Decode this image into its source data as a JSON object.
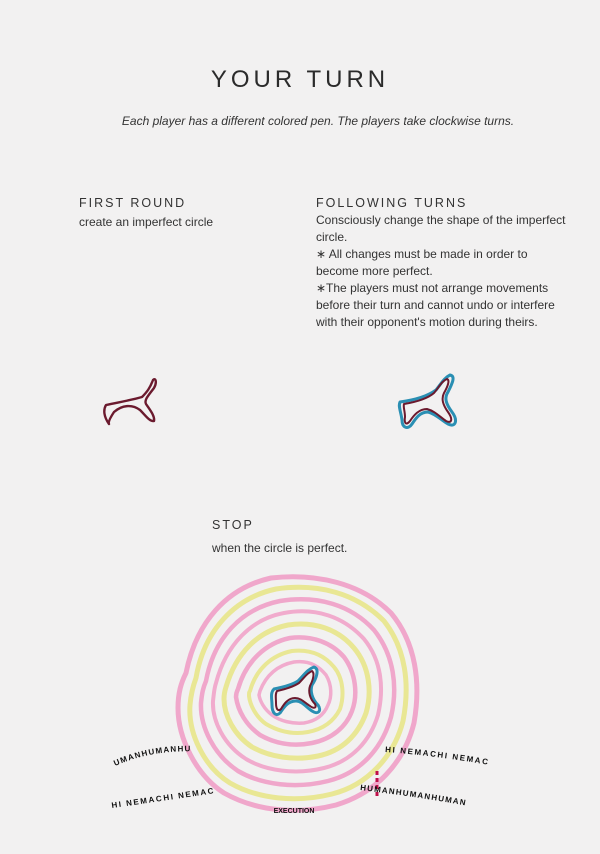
{
  "page": {
    "title": "YOUR TURN",
    "subtitle": "Each player has a  different colored pen. The players take clockwise turns."
  },
  "first_round": {
    "heading": "FIRST ROUND",
    "text": "create an imperfect circle"
  },
  "following_turns": {
    "heading": "FOLLOWING TURNS",
    "lines": [
      "Consciously change the shape of the imperfect",
      "circle.",
      "∗ All changes must be made in order to",
      "become more perfect.",
      "∗The players must not arrange movements",
      "before their turn and cannot undo or interfere",
      "with their opponent's motion during theirs."
    ]
  },
  "stop": {
    "heading": "STOP",
    "text": "when the circle is perfect."
  },
  "diagram": {
    "arc_left_top": "UMANHUMANHU",
    "arc_left_bottom": "HI NEMACHI NEMAC",
    "arc_right_top": "HI NEMACHI NEMAC",
    "arc_right_bottom": "HUMANHUMANHUMAN",
    "execution_label": "EXECUTION"
  },
  "colors": {
    "pen_dark": "#6b1a2e",
    "pen_blue": "#2a8fb3",
    "ring_pink": "#f09ac4",
    "ring_yellow": "#e8e58a",
    "marker_red": "#c0104a"
  }
}
